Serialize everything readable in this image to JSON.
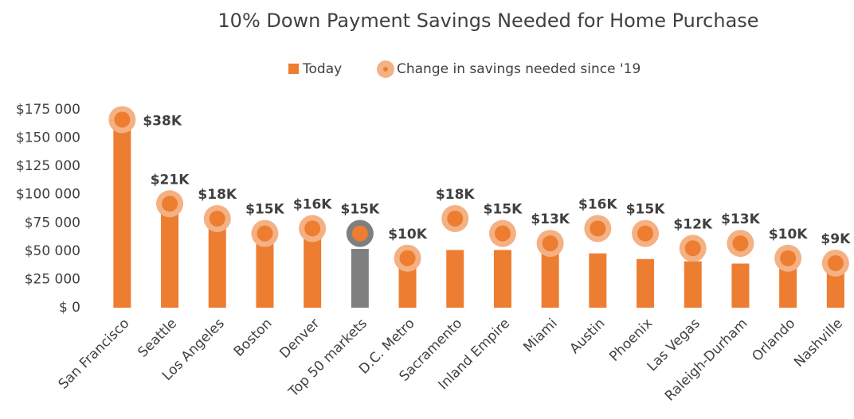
{
  "chart_data": {
    "type": "bar",
    "title": "10% Down Payment Savings Needed for Home Purchase",
    "categories": [
      "San Francisco",
      "Seattle",
      "Los Angeles",
      "Boston",
      "Denver",
      "Top 50 markets",
      "D.C. Metro",
      "Sacramento",
      "Inland Empire",
      "Miami",
      "Austin",
      "Phoenix",
      "Las Vegas",
      "Raleigh-Durham",
      "Orlando",
      "Nashville"
    ],
    "series": [
      {
        "name": "Today",
        "color": "#ed7d31",
        "colors": [
          "#ed7d31",
          "#ed7d31",
          "#ed7d31",
          "#ed7d31",
          "#ed7d31",
          "#7f7f7f",
          "#ed7d31",
          "#ed7d31",
          "#ed7d31",
          "#ed7d31",
          "#ed7d31",
          "#ed7d31",
          "#ed7d31",
          "#ed7d31",
          "#ed7d31",
          "#ed7d31"
        ],
        "values": [
          165000,
          90000,
          77000,
          65000,
          68000,
          52000,
          42000,
          51000,
          51000,
          55000,
          48000,
          43000,
          41000,
          39000,
          40000,
          37000
        ]
      },
      {
        "name": "Change in savings needed since '19",
        "color": "#ed7d31",
        "ring_color": "#f4b183",
        "axis": "y2",
        "colors": [
          "#f4b183",
          "#f4b183",
          "#f4b183",
          "#f4b183",
          "#f4b183",
          "#7f7f7f",
          "#f4b183",
          "#f4b183",
          "#f4b183",
          "#f4b183",
          "#f4b183",
          "#f4b183",
          "#f4b183",
          "#f4b183",
          "#f4b183",
          "#f4b183"
        ],
        "values": [
          38000,
          21000,
          18000,
          15000,
          16000,
          15000,
          10000,
          18000,
          15000,
          13000,
          16000,
          15000,
          12000,
          13000,
          10000,
          9000
        ],
        "value_labels": [
          "$38K",
          "$21K",
          "$18K",
          "$15K",
          "$16K",
          "$15K",
          "$10K",
          "$18K",
          "$15K",
          "$13K",
          "$16K",
          "$15K",
          "$12K",
          "$13K",
          "$10K",
          "$9K"
        ]
      }
    ],
    "ylim": [
      0,
      175000
    ],
    "yticks": [
      {
        "value": 0,
        "label": "$ 0"
      },
      {
        "value": 25000,
        "label": "$25 000"
      },
      {
        "value": 50000,
        "label": "$50 000"
      },
      {
        "value": 75000,
        "label": "$75 000"
      },
      {
        "value": 100000,
        "label": "$100 000"
      },
      {
        "value": 125000,
        "label": "$125 000"
      },
      {
        "value": 150000,
        "label": "$150 000"
      },
      {
        "value": 175000,
        "label": "$175 000"
      }
    ],
    "y2lim": [
      0,
      40000
    ],
    "grid": false,
    "legend": "top"
  }
}
